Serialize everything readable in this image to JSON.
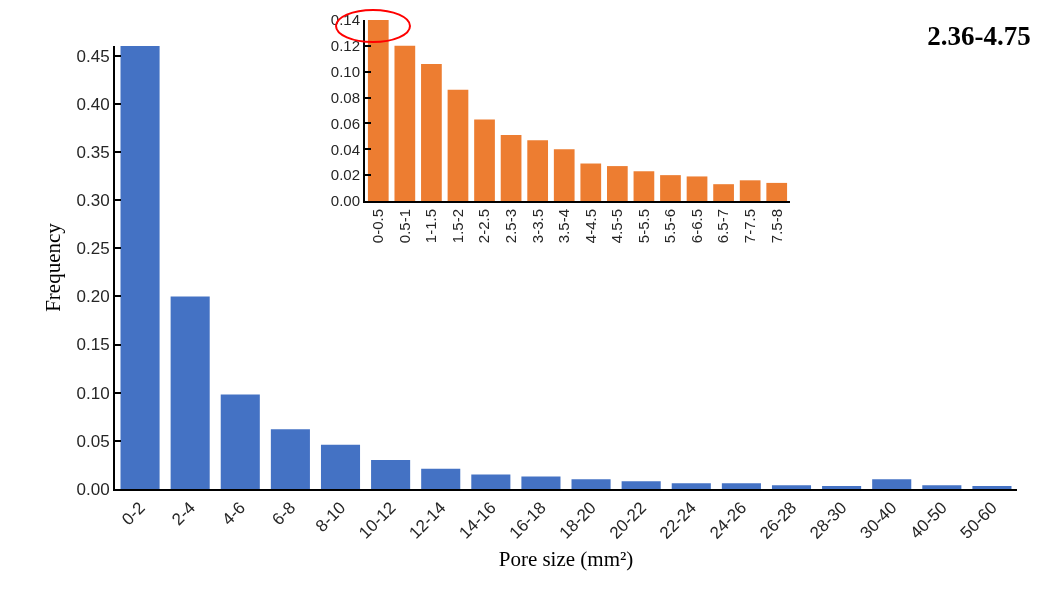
{
  "chart_data": [
    {
      "type": "bar",
      "title": "2.36-4.75",
      "xlabel": "Pore size (mm²)",
      "ylabel": "Frequency",
      "categories": [
        "0-2",
        "2-4",
        "4-6",
        "6-8",
        "8-10",
        "10-12",
        "12-14",
        "14-16",
        "16-18",
        "18-20",
        "20-22",
        "22-24",
        "24-26",
        "26-28",
        "28-30",
        "30-40",
        "40-50",
        "50-60"
      ],
      "values": [
        0.46,
        0.2,
        0.098,
        0.062,
        0.046,
        0.03,
        0.021,
        0.015,
        0.013,
        0.01,
        0.008,
        0.006,
        0.006,
        0.004,
        0.003,
        0.01,
        0.004,
        0.003
      ],
      "color": "#4472c4",
      "ylim": [
        0,
        0.46
      ],
      "yticks": [
        {
          "value": 0,
          "label": "0.00"
        },
        {
          "value": 0.05,
          "label": "0.05"
        },
        {
          "value": 0.1,
          "label": "0.10"
        },
        {
          "value": 0.15,
          "label": "0.15"
        },
        {
          "value": 0.2,
          "label": "0.20"
        },
        {
          "value": 0.25,
          "label": "0.25"
        },
        {
          "value": 0.3,
          "label": "0.30"
        },
        {
          "value": 0.35,
          "label": "0.35"
        },
        {
          "value": 0.4,
          "label": "0.40"
        },
        {
          "value": 0.45,
          "label": "0.45"
        }
      ],
      "grid": false
    },
    {
      "type": "bar",
      "categories": [
        "0-0.5",
        "0.5-1",
        "1-1.5",
        "1.5-2",
        "2-2.5",
        "2.5-3",
        "3-3.5",
        "3.5-4",
        "4-4.5",
        "4.5-5",
        "5-5.5",
        "5.5-6",
        "6-6.5",
        "6.5-7",
        "7-7.5",
        "7.5-8"
      ],
      "values": [
        0.14,
        0.12,
        0.106,
        0.086,
        0.063,
        0.051,
        0.047,
        0.04,
        0.029,
        0.027,
        0.023,
        0.02,
        0.019,
        0.013,
        0.016,
        0.014
      ],
      "color": "#ed7d31",
      "ylim": [
        0,
        0.14
      ],
      "yticks": [
        {
          "value": 0,
          "label": "0.00"
        },
        {
          "value": 0.02,
          "label": "0.02"
        },
        {
          "value": 0.04,
          "label": "0.04"
        },
        {
          "value": 0.06,
          "label": "0.06"
        },
        {
          "value": 0.08,
          "label": "0.08"
        },
        {
          "value": 0.1,
          "label": "0.10"
        },
        {
          "value": 0.12,
          "label": "0.12"
        },
        {
          "value": 0.14,
          "label": "0.14"
        }
      ],
      "grid": false
    }
  ]
}
